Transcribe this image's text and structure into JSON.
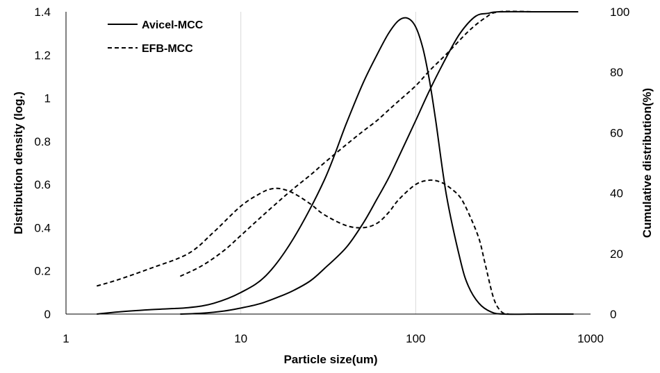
{
  "chart_data": {
    "type": "line",
    "xlabel": "Particle size(um)",
    "ylabel_left": "Distribution density (log.)",
    "ylabel_right": "Cumulative distribution(%)",
    "x_scale": "log",
    "xlim": [
      1,
      1000
    ],
    "ylim_left": [
      0,
      1.4
    ],
    "ylim_right": [
      0,
      100
    ],
    "x_ticks": [
      1,
      10,
      100,
      1000
    ],
    "x_tick_labels": [
      "1",
      "10",
      "100",
      "1000"
    ],
    "y_left_ticks": [
      0,
      0.2,
      0.4,
      0.6,
      0.8,
      1.0,
      1.2,
      1.4
    ],
    "y_left_tick_labels": [
      "0",
      "0.2",
      "0.4",
      "0.6",
      "0.8",
      "1",
      "1.2",
      "1.4"
    ],
    "y_right_ticks": [
      0,
      20,
      40,
      60,
      80,
      100
    ],
    "y_right_tick_labels": [
      "0",
      "20",
      "40",
      "60",
      "80",
      "100"
    ],
    "grid": "vertical gridlines at major x ticks",
    "legend_position": "top-left",
    "legend": [
      {
        "label": "Avicel-MCC",
        "style": "solid"
      },
      {
        "label": "EFB-MCC",
        "style": "dashed"
      }
    ],
    "series": [
      {
        "name": "Avicel-MCC",
        "kind": "density",
        "axis": "left",
        "style": "solid",
        "x": [
          1.5,
          2,
          3,
          5,
          7,
          10,
          14,
          20,
          30,
          40,
          50,
          60,
          70,
          80,
          90,
          100,
          110,
          120,
          130,
          150,
          180,
          200,
          230,
          270,
          320,
          500,
          800
        ],
        "y": [
          0.0,
          0.01,
          0.02,
          0.03,
          0.05,
          0.1,
          0.18,
          0.35,
          0.62,
          0.88,
          1.07,
          1.2,
          1.3,
          1.36,
          1.37,
          1.33,
          1.23,
          1.08,
          0.9,
          0.55,
          0.25,
          0.13,
          0.05,
          0.01,
          0.0,
          0.0,
          0.0
        ]
      },
      {
        "name": "Avicel-MCC",
        "kind": "cumulative",
        "axis": "right",
        "style": "solid",
        "x": [
          4.5,
          6,
          8,
          10,
          13,
          17,
          20,
          25,
          30,
          40,
          50,
          60,
          70,
          80,
          100,
          120,
          150,
          180,
          220,
          260,
          300,
          500,
          850
        ],
        "y": [
          0,
          0.3,
          1,
          2,
          3.5,
          6,
          7.8,
          11,
          15,
          22,
          30,
          38,
          45,
          52,
          64,
          74,
          85,
          93,
          98.5,
          99.5,
          100,
          100,
          100
        ]
      },
      {
        "name": "EFB-MCC",
        "kind": "density",
        "axis": "left",
        "style": "dashed",
        "x": [
          1.5,
          2,
          3,
          5,
          7,
          10,
          13,
          15,
          17,
          20,
          25,
          30,
          40,
          50,
          60,
          70,
          80,
          100,
          120,
          140,
          160,
          180,
          200,
          230,
          250,
          280,
          310,
          340
        ],
        "y": [
          0.13,
          0.16,
          0.21,
          0.28,
          0.38,
          0.5,
          0.56,
          0.58,
          0.58,
          0.56,
          0.51,
          0.46,
          0.41,
          0.4,
          0.42,
          0.47,
          0.53,
          0.6,
          0.62,
          0.61,
          0.58,
          0.54,
          0.47,
          0.35,
          0.23,
          0.07,
          0.01,
          0.0
        ]
      },
      {
        "name": "EFB-MCC",
        "kind": "cumulative",
        "axis": "right",
        "style": "dashed",
        "x": [
          4.5,
          6,
          8,
          10,
          13,
          17,
          20,
          25,
          30,
          40,
          50,
          60,
          70,
          80,
          100,
          120,
          150,
          200,
          250,
          300,
          500,
          850
        ],
        "y": [
          12.5,
          16,
          21,
          26,
          32,
          38,
          41.5,
          46,
          50,
          56,
          60.5,
          64,
          67.5,
          70.5,
          75.5,
          80.5,
          86,
          93.5,
          98,
          100,
          100,
          100
        ]
      }
    ]
  }
}
